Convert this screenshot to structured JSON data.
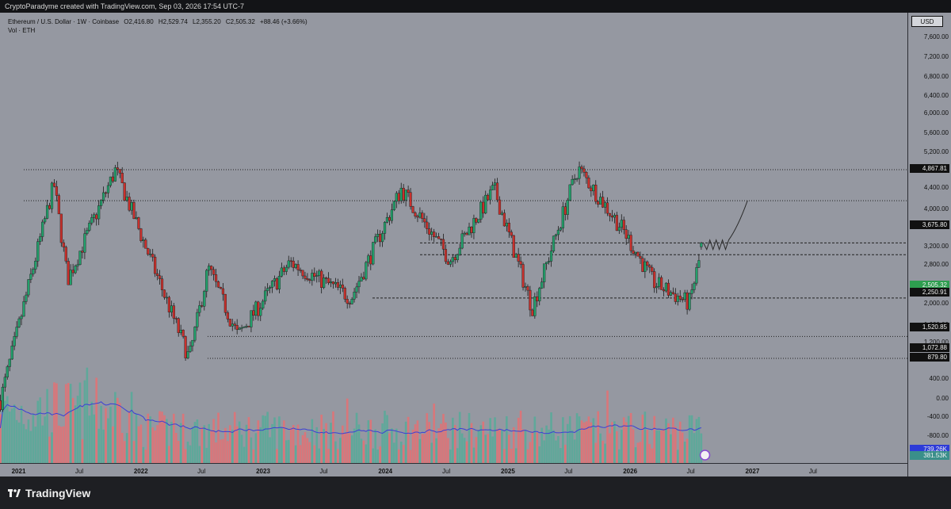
{
  "header": {
    "credit": "CryptoParadyme created with TradingView.com, Sep 03, 2026 17:54 UTC-7"
  },
  "legend": {
    "symbol": "Ethereum / U.S. Dollar · 1W · Coinbase",
    "open": "O2,416.80",
    "high": "H2,529.74",
    "low": "L2,355.20",
    "close": "C2,505.32",
    "change": "+88.46 (+3.66%)",
    "volume_label": "Vol · ETH"
  },
  "price_axis": {
    "currency_button": "USD",
    "ticks": [
      "7,600.00",
      "7,200.00",
      "6,800.00",
      "6,400.00",
      "6,000.00",
      "5,600.00",
      "5,200.00",
      "4,400.00",
      "4,000.00",
      "3,200.00",
      "2,800.00",
      "2,000.00",
      "1,600.00",
      "1,200.00",
      "400.00",
      "0.00",
      "-400.00",
      "-800.00"
    ],
    "badges": [
      {
        "text": "4,867.81",
        "style": "dark"
      },
      {
        "text": "3,675.80",
        "style": "dark"
      },
      {
        "text": "2,505.32",
        "sub": "3d 0h",
        "style": "green"
      },
      {
        "text": "2,250.91",
        "style": "dark"
      },
      {
        "text": "1,520.85",
        "style": "dark"
      },
      {
        "text": "1,072.88",
        "style": "dark"
      },
      {
        "text": "879.80",
        "style": "dark"
      },
      {
        "text": "739.26K",
        "style": "blue"
      },
      {
        "text": "381.53K",
        "style": "teal"
      }
    ]
  },
  "time_axis": {
    "labels": [
      "2021",
      "Jul",
      "2022",
      "Jul",
      "2023",
      "Jul",
      "2024",
      "Jul",
      "2025",
      "Jul",
      "2026",
      "Jul",
      "2027",
      "Jul"
    ]
  },
  "footer": {
    "brand": "TradingView"
  },
  "colors": {
    "background": "#9598a1",
    "up": "#22a06b",
    "down": "#c9302c",
    "vol_up": "#5fa89a",
    "vol_down": "#d9767a",
    "ma": "#3b3fd6"
  },
  "chart_data": {
    "type": "candlestick",
    "title": "Ethereum / U.S. Dollar · 1W · Coinbase",
    "y_scale": "log",
    "ylim": [
      500,
      8000
    ],
    "xlim": [
      "2020-11-30",
      "2027-12-31"
    ],
    "horizontal_levels": [
      4867.81,
      3675.8,
      2505.32,
      2250.91,
      1520.85,
      1072.88,
      879.8
    ],
    "key_points": [
      {
        "date": "2020-12-01",
        "price": 600
      },
      {
        "date": "2021-05-10",
        "price": 4300
      },
      {
        "date": "2021-06-20",
        "price": 1800
      },
      {
        "date": "2021-11-10",
        "price": 4867
      },
      {
        "date": "2022-06-18",
        "price": 880
      },
      {
        "date": "2022-08-14",
        "price": 2000
      },
      {
        "date": "2022-11-10",
        "price": 1080
      },
      {
        "date": "2023-04-15",
        "price": 2100
      },
      {
        "date": "2023-10-15",
        "price": 1530
      },
      {
        "date": "2024-03-12",
        "price": 4090
      },
      {
        "date": "2024-08-05",
        "price": 2150
      },
      {
        "date": "2024-12-15",
        "price": 4100
      },
      {
        "date": "2025-04-07",
        "price": 1390
      },
      {
        "date": "2025-08-22",
        "price": 4950
      },
      {
        "date": "2026-01-05",
        "price": 2800
      },
      {
        "date": "2026-04-05",
        "price": 1750
      },
      {
        "date": "2026-07-20",
        "price": 1450
      },
      {
        "date": "2026-08-31",
        "price": 2505
      }
    ],
    "projection": [
      {
        "date": "2026-09-01",
        "price": 2500
      },
      {
        "date": "2026-10-15",
        "price": 2400
      },
      {
        "date": "2026-11-15",
        "price": 2600
      },
      {
        "date": "2027-01-10",
        "price": 3675
      }
    ],
    "volume_ma_label": "739.26K",
    "volume_last": "381.53K"
  }
}
